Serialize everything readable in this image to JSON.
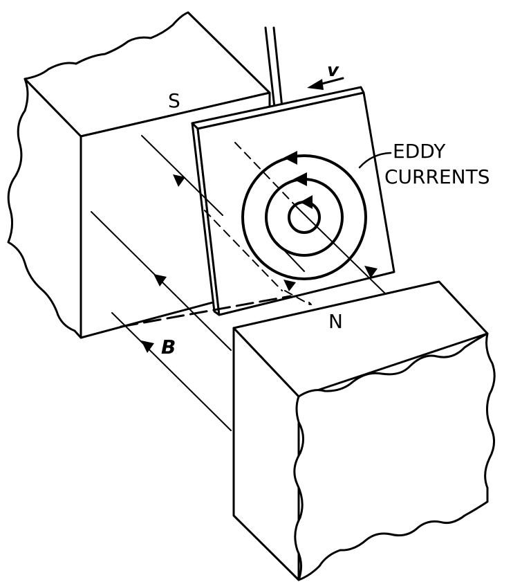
{
  "labels": {
    "south_pole": "S",
    "north_pole": "N",
    "velocity": "v",
    "field": "B",
    "eddy_line1": "EDDY",
    "eddy_line2": "CURRENTS"
  },
  "colors": {
    "stroke": "#000000",
    "background": "#ffffff"
  },
  "icons": {
    "field_arrowheads": "filled-triangle",
    "current_arrowheads": "filled-triangle"
  }
}
